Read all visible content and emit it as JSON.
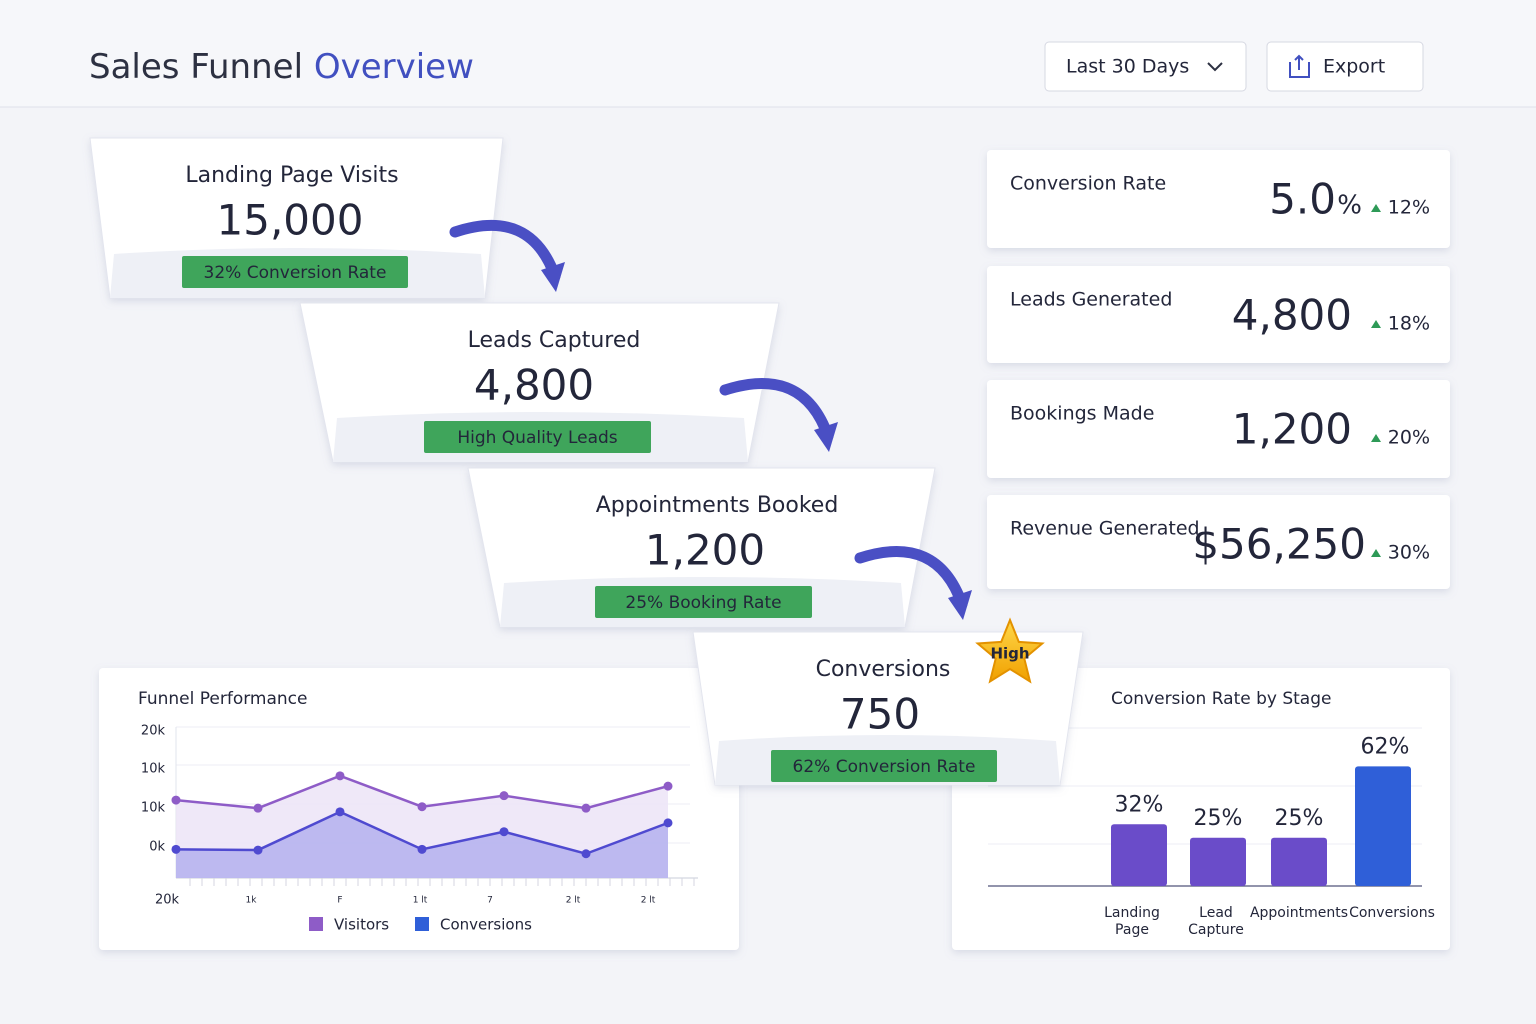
{
  "header": {
    "title": "Sales Funnel",
    "title_highlight": "Overview",
    "date_range": "Last 30 Days",
    "export": "Export"
  },
  "funnel": [
    {
      "title": "Landing Page Visits",
      "value": "15,000",
      "badge": "32% Conversion Rate"
    },
    {
      "title": "Leads Captured",
      "value": "4,800",
      "badge": "High Quality Leads"
    },
    {
      "title": "Appointments Booked",
      "value": "1,200",
      "badge": "25% Booking Rate"
    },
    {
      "title": "Conversions",
      "value": "750",
      "badge": "62% Conversion Rate"
    }
  ],
  "funnel_flag": "High",
  "kpis": [
    {
      "label": "Conversion Rate",
      "value": "5.0",
      "unit": "%",
      "change": "12%"
    },
    {
      "label": "Leads Generated",
      "value": "4,800",
      "change": "18%"
    },
    {
      "label": "Bookings Made",
      "value": "1,200",
      "change": "20%"
    },
    {
      "label": "Revenue Generated",
      "value": "$56,250",
      "change": "30%"
    }
  ],
  "chart_data": [
    {
      "type": "line",
      "title": "Funnel Performance",
      "categories": [
        null,
        null,
        null,
        null,
        null,
        null,
        null
      ],
      "x_labels": [
        "20k",
        "1k",
        "F",
        "1 lt",
        "7",
        "2 lt",
        "2 lt"
      ],
      "y_labels": [
        "20k",
        "10k",
        "10k",
        "0k"
      ],
      "ylim": [
        0,
        20000
      ],
      "series": [
        {
          "name": "Visitors",
          "color": "#8e5cc7",
          "values": [
            10600,
            9500,
            13900,
            9700,
            11200,
            9500,
            12500
          ]
        },
        {
          "name": "Conversions",
          "color": "#4f4ad0",
          "values": [
            3900,
            3800,
            9000,
            3900,
            6300,
            3300,
            7500
          ]
        }
      ]
    },
    {
      "type": "bar",
      "title": "Conversion Rate by Stage",
      "categories": [
        "Landing Page",
        "Lead Capture",
        "Appointments",
        "Conversions"
      ],
      "values": [
        32,
        25,
        25,
        62
      ],
      "value_labels": [
        "32%",
        "25%",
        "25%",
        "62%"
      ],
      "colors": [
        "#6a4cc9",
        "#6a4cc9",
        "#6a4cc9",
        "#2f5fd8"
      ],
      "ylim": [
        0,
        70
      ]
    }
  ]
}
